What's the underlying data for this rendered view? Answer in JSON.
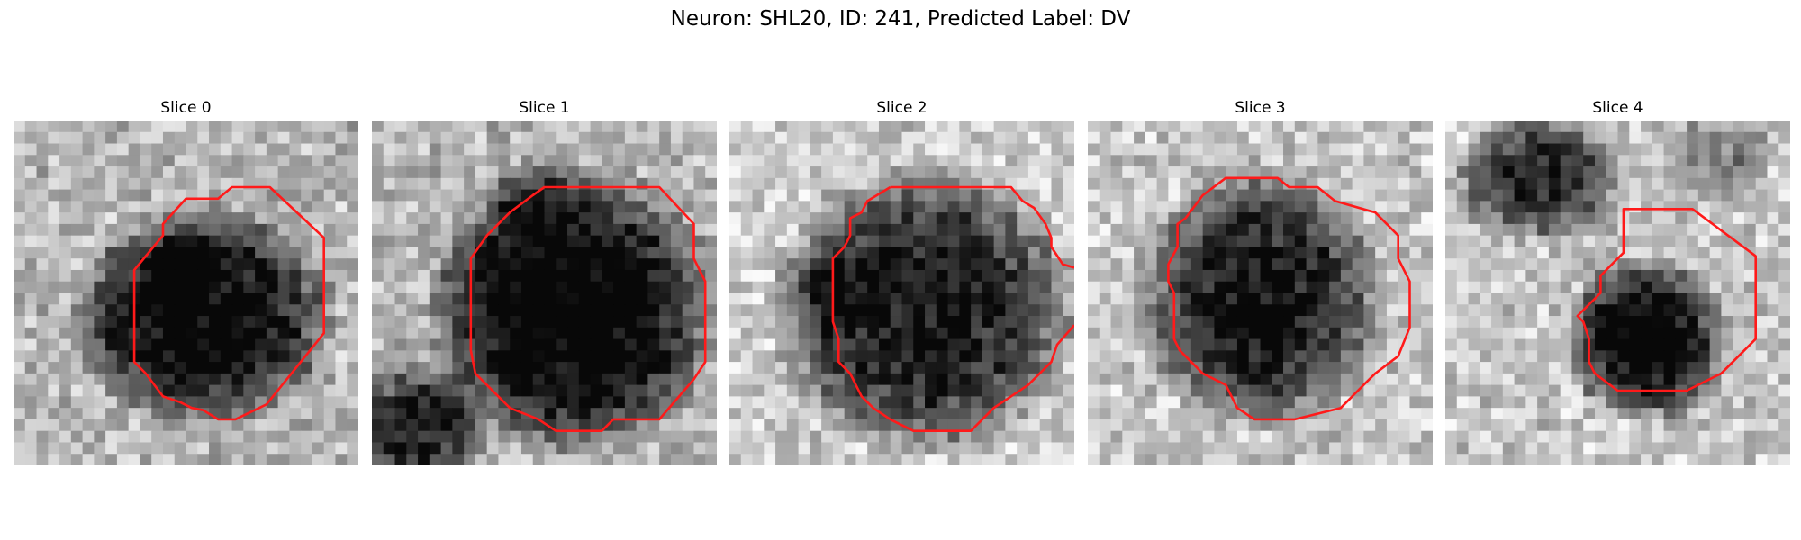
{
  "figure": {
    "title": "Neuron: SHL20, ID: 241, Predicted Label: DV",
    "contour_color": "#ff1a1a",
    "panels": [
      {
        "title": "Slice 0"
      },
      {
        "title": "Slice 1"
      },
      {
        "title": "Slice 2"
      },
      {
        "title": "Slice 3"
      },
      {
        "title": "Slice 4"
      }
    ]
  }
}
